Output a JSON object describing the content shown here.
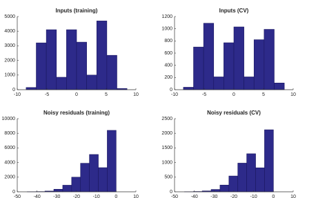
{
  "chart_data": [
    {
      "type": "histogram",
      "title": "Inputs (training)",
      "color": "#2d2a8a",
      "bins": [
        -8.5,
        -6.8,
        -5.1,
        -3.4,
        -1.7,
        0,
        1.7,
        3.4,
        5.1,
        6.8,
        8.5
      ],
      "values": [
        150,
        3200,
        4100,
        850,
        4100,
        3250,
        1000,
        4700,
        2350,
        80
      ],
      "xlim": [
        -10,
        10
      ],
      "xticks": [
        -10,
        -5,
        0,
        5,
        10
      ],
      "ylim": [
        0,
        5000
      ],
      "yticks": [
        0,
        1000,
        2000,
        3000,
        4000,
        5000
      ]
    },
    {
      "type": "histogram",
      "title": "Inputs (CV)",
      "color": "#2d2a8a",
      "bins": [
        -8.5,
        -6.8,
        -5.1,
        -3.4,
        -1.7,
        0,
        1.7,
        3.4,
        5.1,
        6.8,
        8.5
      ],
      "values": [
        40,
        700,
        1090,
        210,
        770,
        1030,
        210,
        820,
        990,
        110
      ],
      "xlim": [
        -10,
        10
      ],
      "xticks": [
        -10,
        -5,
        0,
        5,
        10
      ],
      "ylim": [
        0,
        1200
      ],
      "yticks": [
        0,
        200,
        400,
        600,
        800,
        1000,
        1200
      ]
    },
    {
      "type": "histogram",
      "title": "Noisy residuals (training)",
      "color": "#2d2a8a",
      "bins": [
        -45,
        -40.5,
        -36,
        -31.5,
        -27,
        -22.5,
        -18,
        -13.5,
        -9,
        -4.5,
        0
      ],
      "values": [
        10,
        30,
        100,
        350,
        900,
        2000,
        3900,
        5100,
        3300,
        8400
      ],
      "xlim": [
        -50,
        10
      ],
      "xticks": [
        -50,
        -40,
        -30,
        -20,
        -10,
        0,
        10
      ],
      "ylim": [
        0,
        10000
      ],
      "yticks": [
        0,
        2000,
        4000,
        6000,
        8000,
        10000
      ]
    },
    {
      "type": "histogram",
      "title": "Noisy residuals (CV)",
      "color": "#2d2a8a",
      "bins": [
        -45,
        -40.5,
        -36,
        -31.5,
        -27,
        -22.5,
        -18,
        -13.5,
        -9,
        -4.5,
        0
      ],
      "values": [
        2,
        10,
        30,
        80,
        230,
        540,
        980,
        1300,
        820,
        2120
      ],
      "xlim": [
        -50,
        10
      ],
      "xticks": [
        -50,
        -40,
        -30,
        -20,
        -10,
        0,
        10
      ],
      "ylim": [
        0,
        2500
      ],
      "yticks": [
        0,
        500,
        1000,
        1500,
        2000,
        2500
      ]
    }
  ]
}
